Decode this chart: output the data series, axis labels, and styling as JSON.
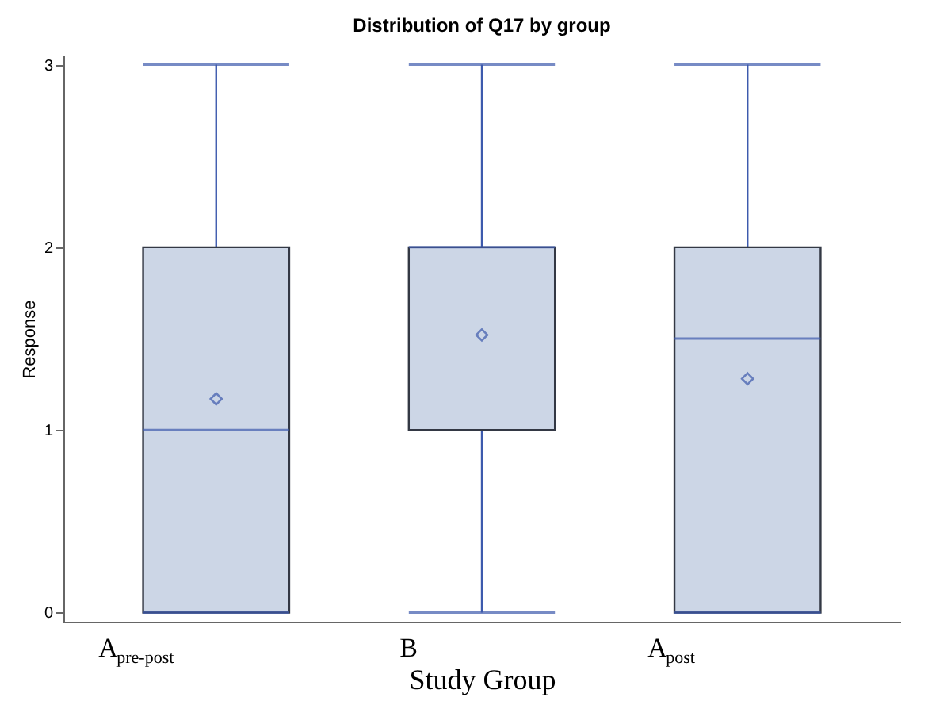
{
  "chart_data": {
    "type": "box",
    "title": "Distribution of Q17 by group",
    "xlabel": "Study Group",
    "ylabel": "Response",
    "categories": [
      "A$_{pre-post}$",
      "B",
      "A$_{post}$"
    ],
    "series": [
      {
        "color": "#ccd6e6",
        "boxes": [
          {
            "low": 0,
            "q1": 0,
            "median": 1,
            "q3": 2,
            "high": 3,
            "mean": 1.17
          },
          {
            "low": 0,
            "q1": 1,
            "median": 2,
            "q3": 2,
            "high": 3,
            "mean": 1.52
          },
          {
            "low": 0,
            "q1": 0,
            "median": 1.5,
            "q3": 2,
            "high": 3,
            "mean": 1.28
          }
        ]
      }
    ],
    "ylim": [
      -0.05,
      3.05
    ],
    "yticks": [
      0,
      1,
      2,
      3
    ],
    "marker": "diamond"
  }
}
